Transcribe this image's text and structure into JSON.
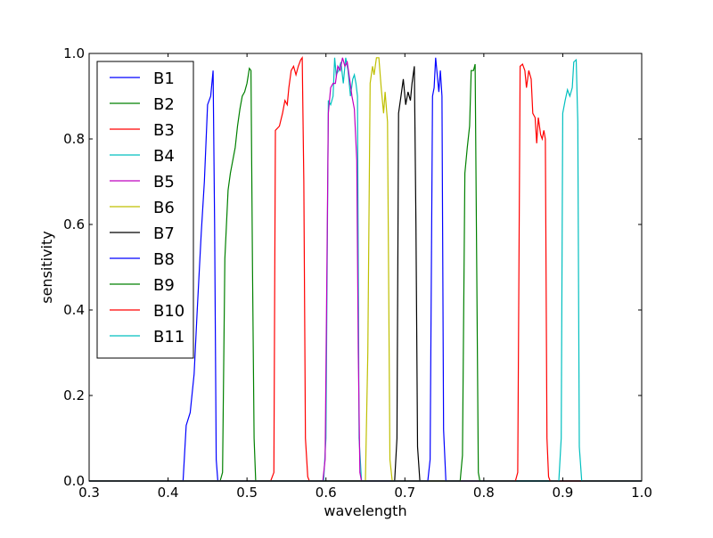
{
  "chart_data": {
    "type": "line",
    "xlabel": "wavelength",
    "ylabel": "sensitivity",
    "xlim": [
      0.3,
      1.0
    ],
    "ylim": [
      0.0,
      1.0
    ],
    "xticks": [
      "0.3",
      "0.4",
      "0.5",
      "0.6",
      "0.7",
      "0.8",
      "0.9",
      "1.0"
    ],
    "yticks": [
      "0.0",
      "0.2",
      "0.4",
      "0.6",
      "0.8",
      "1.0"
    ],
    "grid": false,
    "legend_position": "upper-left",
    "series": [
      {
        "name": "B1",
        "color": "#0000ff",
        "points": [
          [
            0.3,
            0
          ],
          [
            0.419,
            0
          ],
          [
            0.423,
            0.13
          ],
          [
            0.428,
            0.16
          ],
          [
            0.433,
            0.25
          ],
          [
            0.437,
            0.4
          ],
          [
            0.442,
            0.58
          ],
          [
            0.446,
            0.7
          ],
          [
            0.45,
            0.88
          ],
          [
            0.454,
            0.9
          ],
          [
            0.457,
            0.96
          ],
          [
            0.459,
            0.6
          ],
          [
            0.461,
            0.05
          ],
          [
            0.463,
            0
          ],
          [
            1.0,
            0
          ]
        ]
      },
      {
        "name": "B2",
        "color": "#008000",
        "points": [
          [
            0.3,
            0
          ],
          [
            0.466,
            0
          ],
          [
            0.469,
            0.02
          ],
          [
            0.472,
            0.52
          ],
          [
            0.476,
            0.68
          ],
          [
            0.479,
            0.72
          ],
          [
            0.482,
            0.75
          ],
          [
            0.485,
            0.78
          ],
          [
            0.488,
            0.83
          ],
          [
            0.491,
            0.87
          ],
          [
            0.494,
            0.9
          ],
          [
            0.497,
            0.91
          ],
          [
            0.5,
            0.93
          ],
          [
            0.503,
            0.965
          ],
          [
            0.505,
            0.96
          ],
          [
            0.507,
            0.5
          ],
          [
            0.509,
            0.1
          ],
          [
            0.511,
            0
          ],
          [
            1.0,
            0
          ]
        ]
      },
      {
        "name": "B3",
        "color": "#ff0000",
        "points": [
          [
            0.3,
            0
          ],
          [
            0.53,
            0
          ],
          [
            0.534,
            0.02
          ],
          [
            0.536,
            0.82
          ],
          [
            0.541,
            0.83
          ],
          [
            0.545,
            0.86
          ],
          [
            0.548,
            0.89
          ],
          [
            0.551,
            0.88
          ],
          [
            0.553,
            0.92
          ],
          [
            0.556,
            0.96
          ],
          [
            0.559,
            0.97
          ],
          [
            0.562,
            0.95
          ],
          [
            0.565,
            0.97
          ],
          [
            0.568,
            0.985
          ],
          [
            0.57,
            0.99
          ],
          [
            0.572,
            0.7
          ],
          [
            0.574,
            0.1
          ],
          [
            0.577,
            0.01
          ],
          [
            0.579,
            0
          ],
          [
            1.0,
            0
          ]
        ]
      },
      {
        "name": "B4",
        "color": "#00bfbf",
        "points": [
          [
            0.3,
            0
          ],
          [
            0.597,
            0
          ],
          [
            0.6,
            0.1
          ],
          [
            0.603,
            0.89
          ],
          [
            0.606,
            0.88
          ],
          [
            0.609,
            0.9
          ],
          [
            0.611,
            0.99
          ],
          [
            0.613,
            0.95
          ],
          [
            0.616,
            0.96
          ],
          [
            0.619,
            0.98
          ],
          [
            0.622,
            0.93
          ],
          [
            0.625,
            0.99
          ],
          [
            0.628,
            0.96
          ],
          [
            0.631,
            0.9
          ],
          [
            0.634,
            0.94
          ],
          [
            0.636,
            0.95
          ],
          [
            0.638,
            0.93
          ],
          [
            0.64,
            0.9
          ],
          [
            0.642,
            0.1
          ],
          [
            0.645,
            0
          ],
          [
            1.0,
            0
          ]
        ]
      },
      {
        "name": "B5",
        "color": "#bf00bf",
        "points": [
          [
            0.3,
            0
          ],
          [
            0.596,
            0
          ],
          [
            0.599,
            0.05
          ],
          [
            0.603,
            0.86
          ],
          [
            0.606,
            0.92
          ],
          [
            0.609,
            0.93
          ],
          [
            0.612,
            0.93
          ],
          [
            0.615,
            0.97
          ],
          [
            0.618,
            0.96
          ],
          [
            0.621,
            0.99
          ],
          [
            0.624,
            0.97
          ],
          [
            0.627,
            0.98
          ],
          [
            0.63,
            0.94
          ],
          [
            0.633,
            0.9
          ],
          [
            0.636,
            0.87
          ],
          [
            0.639,
            0.75
          ],
          [
            0.641,
            0.3
          ],
          [
            0.643,
            0.02
          ],
          [
            0.645,
            0
          ],
          [
            1.0,
            0
          ]
        ]
      },
      {
        "name": "B6",
        "color": "#bfbf00",
        "points": [
          [
            0.3,
            0
          ],
          [
            0.65,
            0
          ],
          [
            0.653,
            0.3
          ],
          [
            0.656,
            0.93
          ],
          [
            0.659,
            0.97
          ],
          [
            0.661,
            0.95
          ],
          [
            0.664,
            0.99
          ],
          [
            0.667,
            0.99
          ],
          [
            0.67,
            0.92
          ],
          [
            0.673,
            0.86
          ],
          [
            0.675,
            0.91
          ],
          [
            0.678,
            0.84
          ],
          [
            0.681,
            0.05
          ],
          [
            0.684,
            0
          ],
          [
            1.0,
            0
          ]
        ]
      },
      {
        "name": "B7",
        "color": "#000000",
        "points": [
          [
            0.3,
            0
          ],
          [
            0.687,
            0
          ],
          [
            0.69,
            0.1
          ],
          [
            0.692,
            0.86
          ],
          [
            0.695,
            0.9
          ],
          [
            0.698,
            0.94
          ],
          [
            0.701,
            0.88
          ],
          [
            0.704,
            0.91
          ],
          [
            0.707,
            0.89
          ],
          [
            0.709,
            0.93
          ],
          [
            0.712,
            0.97
          ],
          [
            0.714,
            0.6
          ],
          [
            0.716,
            0.08
          ],
          [
            0.719,
            0
          ],
          [
            1.0,
            0
          ]
        ]
      },
      {
        "name": "B8",
        "color": "#0000ff",
        "points": [
          [
            0.3,
            0
          ],
          [
            0.729,
            0
          ],
          [
            0.732,
            0.05
          ],
          [
            0.735,
            0.9
          ],
          [
            0.737,
            0.92
          ],
          [
            0.739,
            0.99
          ],
          [
            0.741,
            0.95
          ],
          [
            0.743,
            0.91
          ],
          [
            0.745,
            0.96
          ],
          [
            0.747,
            0.9
          ],
          [
            0.749,
            0.12
          ],
          [
            0.752,
            0
          ],
          [
            1.0,
            0
          ]
        ]
      },
      {
        "name": "B9",
        "color": "#008000",
        "points": [
          [
            0.3,
            0
          ],
          [
            0.77,
            0
          ],
          [
            0.773,
            0.06
          ],
          [
            0.776,
            0.72
          ],
          [
            0.779,
            0.78
          ],
          [
            0.782,
            0.83
          ],
          [
            0.784,
            0.96
          ],
          [
            0.787,
            0.96
          ],
          [
            0.789,
            0.975
          ],
          [
            0.791,
            0.5
          ],
          [
            0.793,
            0.02
          ],
          [
            0.795,
            0
          ],
          [
            1.0,
            0
          ]
        ]
      },
      {
        "name": "B10",
        "color": "#ff0000",
        "points": [
          [
            0.3,
            0
          ],
          [
            0.84,
            0
          ],
          [
            0.843,
            0.02
          ],
          [
            0.846,
            0.97
          ],
          [
            0.849,
            0.975
          ],
          [
            0.852,
            0.96
          ],
          [
            0.854,
            0.92
          ],
          [
            0.857,
            0.96
          ],
          [
            0.86,
            0.94
          ],
          [
            0.862,
            0.86
          ],
          [
            0.865,
            0.85
          ],
          [
            0.867,
            0.79
          ],
          [
            0.869,
            0.85
          ],
          [
            0.872,
            0.81
          ],
          [
            0.874,
            0.8
          ],
          [
            0.876,
            0.82
          ],
          [
            0.878,
            0.8
          ],
          [
            0.88,
            0.1
          ],
          [
            0.882,
            0.01
          ],
          [
            0.884,
            0
          ],
          [
            1.0,
            0
          ]
        ]
      },
      {
        "name": "B11",
        "color": "#00bfbf",
        "points": [
          [
            0.3,
            0
          ],
          [
            0.895,
            0
          ],
          [
            0.898,
            0.1
          ],
          [
            0.9,
            0.86
          ],
          [
            0.903,
            0.89
          ],
          [
            0.906,
            0.915
          ],
          [
            0.909,
            0.9
          ],
          [
            0.912,
            0.92
          ],
          [
            0.914,
            0.98
          ],
          [
            0.917,
            0.985
          ],
          [
            0.919,
            0.84
          ],
          [
            0.921,
            0.08
          ],
          [
            0.924,
            0
          ],
          [
            1.0,
            0
          ]
        ]
      }
    ]
  }
}
